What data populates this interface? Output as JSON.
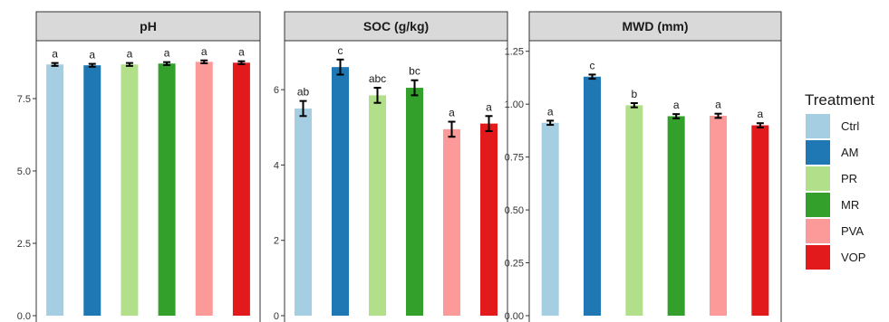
{
  "chart_data": [
    {
      "type": "bar",
      "title": "pH",
      "categories": [
        "Ctrl",
        "AM",
        "PR",
        "MR",
        "PVA",
        "VOP"
      ],
      "values": [
        8.68,
        8.65,
        8.68,
        8.71,
        8.77,
        8.74
      ],
      "errors": [
        0.05,
        0.05,
        0.05,
        0.05,
        0.05,
        0.05
      ],
      "significance": [
        "a",
        "a",
        "a",
        "a",
        "a",
        "a"
      ],
      "ylim": [
        0,
        9.5
      ],
      "yticks": [
        0,
        2.5,
        5,
        7.5
      ],
      "ytick_labels": [
        "0.0",
        "2.5",
        "5.0",
        "7.5"
      ],
      "xlabel": "",
      "ylabel": ""
    },
    {
      "type": "bar",
      "title": "SOC (g/kg)",
      "categories": [
        "Ctrl",
        "AM",
        "PR",
        "MR",
        "PVA",
        "VOP"
      ],
      "values": [
        5.5,
        6.6,
        5.85,
        6.05,
        4.95,
        5.1
      ],
      "errors": [
        0.2,
        0.2,
        0.2,
        0.2,
        0.2,
        0.2
      ],
      "significance": [
        "ab",
        "c",
        "abc",
        "bc",
        "a",
        "a"
      ],
      "ylim": [
        0,
        7.3
      ],
      "yticks": [
        0,
        2,
        4,
        6
      ],
      "ytick_labels": [
        "0",
        "2",
        "4",
        "6"
      ],
      "xlabel": "",
      "ylabel": ""
    },
    {
      "type": "bar",
      "title": "MWD (mm)",
      "categories": [
        "Ctrl",
        "AM",
        "PR",
        "MR",
        "PVA",
        "VOP"
      ],
      "values": [
        0.912,
        1.13,
        0.995,
        0.943,
        0.945,
        0.9
      ],
      "errors": [
        0.01,
        0.01,
        0.01,
        0.01,
        0.01,
        0.01
      ],
      "significance": [
        "a",
        "c",
        "b",
        "a",
        "a",
        "a"
      ],
      "ylim": [
        0,
        1.3
      ],
      "yticks": [
        0,
        0.25,
        0.5,
        0.75,
        1,
        1.25
      ],
      "ytick_labels": [
        "0.00",
        "0.25",
        "0.50",
        "0.75",
        "1.00",
        "1.25"
      ],
      "xlabel": "",
      "ylabel": ""
    }
  ],
  "legend": {
    "title": "Treatment",
    "position": "right",
    "items": [
      {
        "label": "Ctrl",
        "color": "#a6cee3"
      },
      {
        "label": "AM",
        "color": "#1f78b4"
      },
      {
        "label": "PR",
        "color": "#b2df8a"
      },
      {
        "label": "MR",
        "color": "#33a02c"
      },
      {
        "label": "PVA",
        "color": "#fb9a99"
      },
      {
        "label": "VOP",
        "color": "#e31a1c"
      }
    ]
  },
  "style": {
    "strip_fill": "#d9d9d9",
    "panel_border": "#333333",
    "error_bar_color": "#000000",
    "grid": false
  }
}
